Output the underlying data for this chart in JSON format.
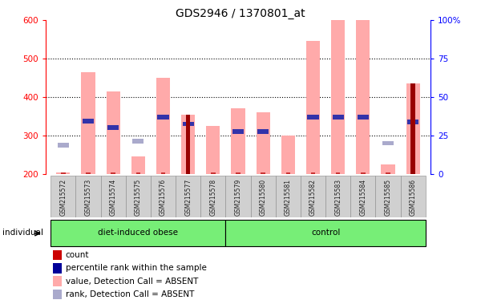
{
  "title": "GDS2946 / 1370801_at",
  "samples": [
    "GSM215572",
    "GSM215573",
    "GSM215574",
    "GSM215575",
    "GSM215576",
    "GSM215577",
    "GSM215578",
    "GSM215579",
    "GSM215580",
    "GSM215581",
    "GSM215582",
    "GSM215583",
    "GSM215584",
    "GSM215585",
    "GSM215586"
  ],
  "groups": [
    "diet-induced obese",
    "diet-induced obese",
    "diet-induced obese",
    "diet-induced obese",
    "diet-induced obese",
    "diet-induced obese",
    "diet-induced obese",
    "control",
    "control",
    "control",
    "control",
    "control",
    "control",
    "control",
    "control"
  ],
  "value_absent": [
    205,
    465,
    415,
    245,
    450,
    355,
    325,
    370,
    360,
    300,
    545,
    600,
    600,
    225,
    435
  ],
  "rank_absent": [
    275,
    null,
    null,
    285,
    null,
    null,
    null,
    null,
    null,
    null,
    null,
    null,
    null,
    280,
    null
  ],
  "percentile_rank": [
    null,
    337,
    320,
    null,
    348,
    330,
    null,
    310,
    310,
    null,
    348,
    348,
    348,
    null,
    335
  ],
  "count": [
    205,
    205,
    205,
    205,
    205,
    355,
    205,
    205,
    205,
    205,
    205,
    205,
    205,
    205,
    435
  ],
  "count_color_dark": [
    false,
    false,
    false,
    false,
    false,
    true,
    false,
    false,
    false,
    false,
    false,
    false,
    false,
    false,
    true
  ],
  "ylim_left": [
    200,
    600
  ],
  "ylim_right": [
    0,
    100
  ],
  "yticks_left": [
    200,
    300,
    400,
    500,
    600
  ],
  "yticks_right": [
    0,
    25,
    50,
    75,
    100
  ],
  "group_order": [
    "diet-induced obese",
    "control"
  ],
  "legend_items": [
    {
      "label": "count",
      "color": "#cc0000"
    },
    {
      "label": "percentile rank within the sample",
      "color": "#000099"
    },
    {
      "label": "value, Detection Call = ABSENT",
      "color": "#ffaaaa"
    },
    {
      "label": "rank, Detection Call = ABSENT",
      "color": "#aaaacc"
    }
  ],
  "plot_bg_color": "#ffffff",
  "group_bg_color": "#77ee77",
  "sample_box_color": "#d0d0d0"
}
